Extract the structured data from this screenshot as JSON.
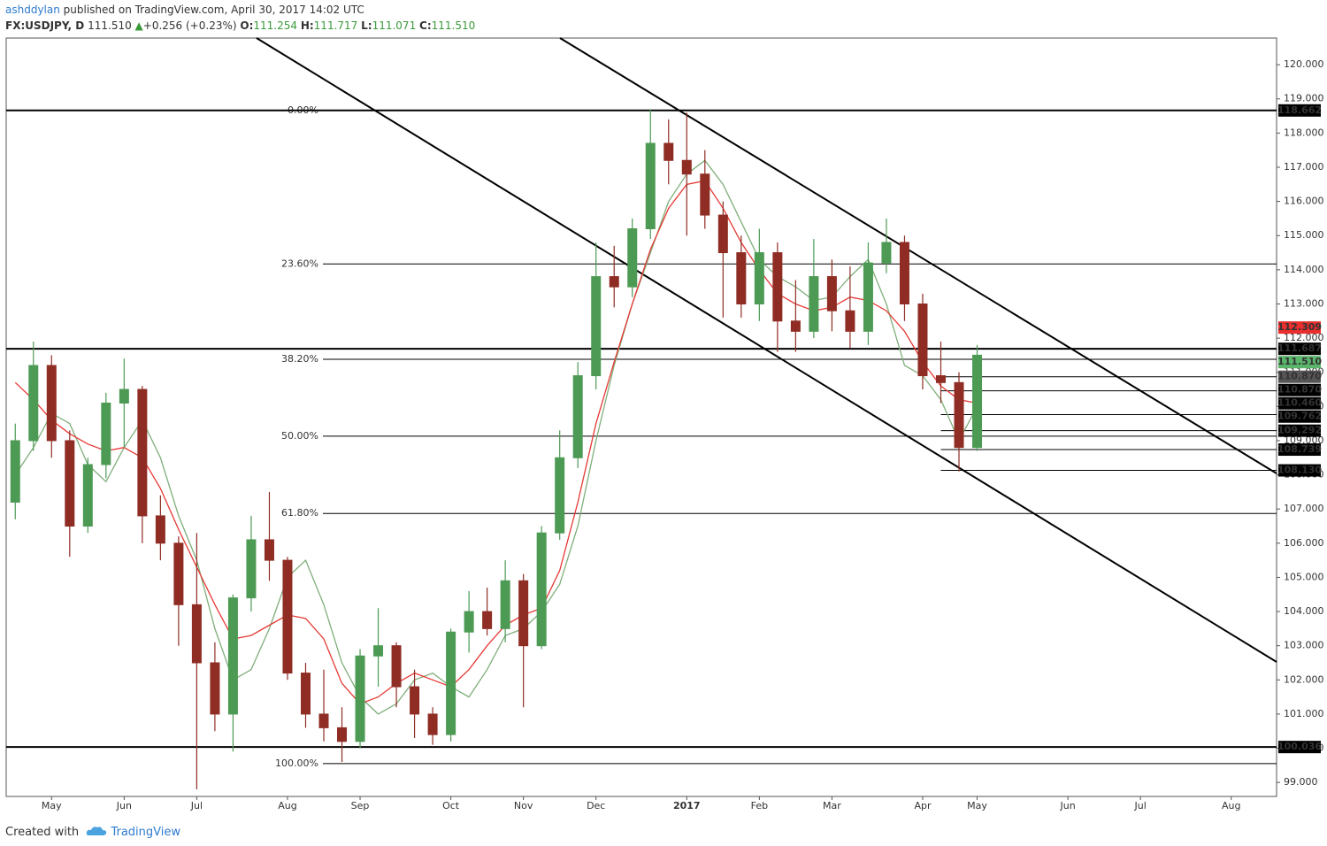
{
  "header": {
    "author": "ashddylan",
    "published": "published on TradingView.com, April 30, 2017 14:02 UTC",
    "symbol": "FX:USDJPY, D",
    "last": "111.510",
    "arrow": "▲",
    "change": "+0.256 (+0.23%)",
    "o_label": "O:",
    "o": "111.254",
    "h_label": "H:",
    "h": "111.717",
    "l_label": "L:",
    "l": "111.071",
    "c_label": "C:",
    "c": "111.510"
  },
  "footer": {
    "created": "Created with",
    "brand": "TradingView"
  },
  "chart_data": {
    "type": "candlestick",
    "categories": [
      null,
      null,
      "May",
      null,
      null,
      null,
      "Jun",
      null,
      null,
      null,
      "Jul",
      null,
      null,
      null,
      null,
      "Aug",
      null,
      null,
      null,
      "Sep",
      null,
      null,
      null,
      null,
      "Oct",
      null,
      null,
      null,
      "Nov",
      null,
      null,
      null,
      "Dec",
      null,
      null,
      null,
      null,
      "2017",
      null,
      null,
      null,
      "Feb",
      null,
      null,
      null,
      "Mar",
      null,
      null,
      null,
      null,
      "Apr",
      null,
      null,
      "May",
      null,
      null,
      null,
      null,
      "Jun",
      null,
      null,
      null,
      "Jul",
      null,
      null,
      null,
      null,
      "Aug",
      null,
      null
    ],
    "open": [
      107.2,
      109.0,
      111.2,
      109.0,
      106.5,
      108.3,
      110.1,
      110.5,
      106.8,
      106.0,
      104.2,
      102.5,
      101.0,
      104.4,
      106.1,
      105.5,
      102.2,
      101.0,
      100.6,
      100.2,
      102.7,
      103.0,
      101.8,
      101.0,
      100.4,
      103.4,
      104.0,
      103.5,
      104.9,
      103.0,
      106.3,
      108.5,
      110.9,
      113.8,
      113.5,
      115.2,
      117.7,
      117.2,
      116.8,
      115.6,
      114.5,
      113.0,
      114.5,
      112.5,
      112.2,
      113.8,
      112.8,
      112.2,
      114.2,
      114.8,
      113.0,
      110.9,
      110.7,
      108.8,
      null,
      null,
      null,
      null,
      null,
      null,
      null,
      null,
      null,
      null,
      null,
      null,
      null,
      null,
      null,
      null
    ],
    "high": [
      109.5,
      111.9,
      111.5,
      109.3,
      108.5,
      110.4,
      111.4,
      110.6,
      107.4,
      106.2,
      106.3,
      103.1,
      104.5,
      106.8,
      107.5,
      105.6,
      102.5,
      102.3,
      101.2,
      102.9,
      104.1,
      103.1,
      102.3,
      101.2,
      103.5,
      104.6,
      104.7,
      105.5,
      105.1,
      106.5,
      109.3,
      111.3,
      114.8,
      114.7,
      115.5,
      118.7,
      118.4,
      118.6,
      117.5,
      116.0,
      115.0,
      115.2,
      114.8,
      113.7,
      114.9,
      114.3,
      114.1,
      114.8,
      115.5,
      115.0,
      113.3,
      111.9,
      111.0,
      111.8,
      null,
      null,
      null,
      null,
      null,
      null,
      null,
      null,
      null,
      null,
      null,
      null,
      null,
      null,
      null,
      null
    ],
    "low": [
      106.7,
      108.7,
      108.5,
      105.6,
      106.3,
      107.9,
      108.8,
      106.0,
      105.5,
      103.0,
      98.8,
      100.5,
      99.9,
      104.0,
      104.9,
      102.0,
      100.6,
      100.2,
      99.6,
      100.0,
      101.8,
      101.2,
      100.3,
      100.1,
      100.2,
      102.8,
      103.3,
      103.1,
      101.2,
      102.9,
      106.1,
      108.2,
      110.5,
      112.9,
      113.2,
      114.9,
      116.5,
      115.0,
      115.2,
      112.6,
      112.6,
      112.5,
      111.6,
      111.6,
      112.0,
      112.2,
      111.7,
      111.8,
      113.9,
      112.5,
      110.5,
      110.1,
      108.1,
      108.7,
      null,
      null,
      null,
      null,
      null,
      null,
      null,
      null,
      null,
      null,
      null,
      null,
      null,
      null,
      null,
      null
    ],
    "close": [
      109.0,
      111.2,
      109.0,
      106.5,
      108.3,
      110.1,
      110.5,
      106.8,
      106.0,
      104.2,
      102.5,
      101.0,
      104.4,
      106.1,
      105.5,
      102.2,
      101.0,
      100.6,
      100.2,
      102.7,
      103.0,
      101.8,
      101.0,
      100.4,
      103.4,
      104.0,
      103.5,
      104.9,
      103.0,
      106.3,
      108.5,
      110.9,
      113.8,
      113.5,
      115.2,
      117.7,
      117.2,
      116.8,
      115.6,
      114.5,
      113.0,
      114.5,
      112.5,
      112.2,
      113.8,
      112.8,
      112.2,
      114.2,
      114.8,
      113.0,
      110.9,
      110.7,
      108.8,
      111.5,
      null,
      null,
      null,
      null,
      null,
      null,
      null,
      null,
      null,
      null,
      null,
      null,
      null,
      null,
      null,
      null
    ],
    "up_color": "#4d9a55",
    "down_color": "#8f2d24",
    "overlays": [
      {
        "color": "#7fae7a",
        "values": [
          108.0,
          108.8,
          109.8,
          109.5,
          108.3,
          107.8,
          108.8,
          109.6,
          108.5,
          106.8,
          105.5,
          103.5,
          102.0,
          102.3,
          103.5,
          105.0,
          105.5,
          104.2,
          102.5,
          101.5,
          101.0,
          101.3,
          102.0,
          102.2,
          101.8,
          101.5,
          102.3,
          103.3,
          103.5,
          104.0,
          104.8,
          106.5,
          109.0,
          111.2,
          113.0,
          114.5,
          116.0,
          116.8,
          117.2,
          116.5,
          115.4,
          114.3,
          113.8,
          113.5,
          113.1,
          113.2,
          113.8,
          114.3,
          113.0,
          111.2,
          110.9,
          110.2,
          109.0,
          110.0,
          null,
          null,
          null,
          null,
          null,
          null,
          null,
          null,
          null,
          null,
          null,
          null,
          null,
          null,
          null,
          null
        ]
      },
      {
        "color": "#e53935",
        "values": [
          110.7,
          110.2,
          109.6,
          109.2,
          108.9,
          108.7,
          108.8,
          108.5,
          107.6,
          106.4,
          105.3,
          104.2,
          103.2,
          103.3,
          103.6,
          103.9,
          103.8,
          103.2,
          101.9,
          101.3,
          101.5,
          101.9,
          102.2,
          102.0,
          101.8,
          102.3,
          103.0,
          103.6,
          103.9,
          104.1,
          105.2,
          107.2,
          109.5,
          111.3,
          113.0,
          114.6,
          115.8,
          116.5,
          116.6,
          115.8,
          114.8,
          114.0,
          113.3,
          113.0,
          112.8,
          112.9,
          113.2,
          113.1,
          112.8,
          112.2,
          111.3,
          110.6,
          110.2,
          110.1,
          null,
          null,
          null,
          null,
          null,
          null,
          null,
          null,
          null,
          null,
          null,
          null,
          null,
          null,
          null,
          null
        ]
      }
    ],
    "ylim": [
      98.59,
      120.78
    ],
    "yticks": [
      {
        "value": 99,
        "label": "99.000"
      },
      {
        "value": 100,
        "label": "100.000"
      },
      {
        "value": 101,
        "label": "101.000"
      },
      {
        "value": 102,
        "label": "102.000"
      },
      {
        "value": 103,
        "label": "103.000"
      },
      {
        "value": 104,
        "label": "104.000"
      },
      {
        "value": 105,
        "label": "105.000"
      },
      {
        "value": 106,
        "label": "106.000"
      },
      {
        "value": 107,
        "label": "107.000"
      },
      {
        "value": 108,
        "label": "108.000"
      },
      {
        "value": 109,
        "label": "109.000"
      },
      {
        "value": 110,
        "label": "110.000"
      },
      {
        "value": 111,
        "label": "111.000"
      },
      {
        "value": 112,
        "label": "112.000"
      },
      {
        "value": 113,
        "label": "113.000"
      },
      {
        "value": 114,
        "label": "114.000"
      },
      {
        "value": 115,
        "label": "115.000"
      },
      {
        "value": 116,
        "label": "116.000"
      },
      {
        "value": 117,
        "label": "117.000"
      },
      {
        "value": 118,
        "label": "118.000"
      },
      {
        "value": 119,
        "label": "119.000"
      },
      {
        "value": 120,
        "label": "120.000"
      }
    ],
    "fib_levels": [
      {
        "label": "0.00%",
        "value": 118.662
      },
      {
        "label": "23.60%",
        "value": 114.17
      },
      {
        "label": "38.20%",
        "value": 111.38
      },
      {
        "label": "50.00%",
        "value": 109.13
      },
      {
        "label": "61.80%",
        "value": 106.87
      },
      {
        "label": "100.00%",
        "value": 99.55
      }
    ],
    "levels": [
      118.662,
      111.687,
      100.036
    ],
    "rays": [
      110.87,
      110.46,
      109.762,
      109.292,
      108.739,
      108.13
    ],
    "price_tags": [
      {
        "value": 118.662,
        "label": "118.662",
        "color": "#000000"
      },
      {
        "value": 112.309,
        "label": "112.309",
        "color": "#e82e2e"
      },
      {
        "value": 110.87,
        "label": "110.870",
        "color": "#555555"
      },
      {
        "value": 111.687,
        "label": "111.687",
        "color": "#000000"
      },
      {
        "value": 111.51,
        "label": "111.510",
        "color": "#5ab56b"
      },
      {
        "value": 110.87,
        "label": "110.870",
        "color": "#000000"
      },
      {
        "value": 110.46,
        "label": "110.460",
        "color": "#000000"
      },
      {
        "value": 109.762,
        "label": "109.762",
        "color": "#000000"
      },
      {
        "value": 109.292,
        "label": "109.292",
        "color": "#000000"
      },
      {
        "value": 108.739,
        "label": "108.739",
        "color": "#000000"
      },
      {
        "value": 108.13,
        "label": "108.130",
        "color": "#000000"
      },
      {
        "value": 100.036,
        "label": "100.036",
        "color": "#000000"
      }
    ]
  }
}
